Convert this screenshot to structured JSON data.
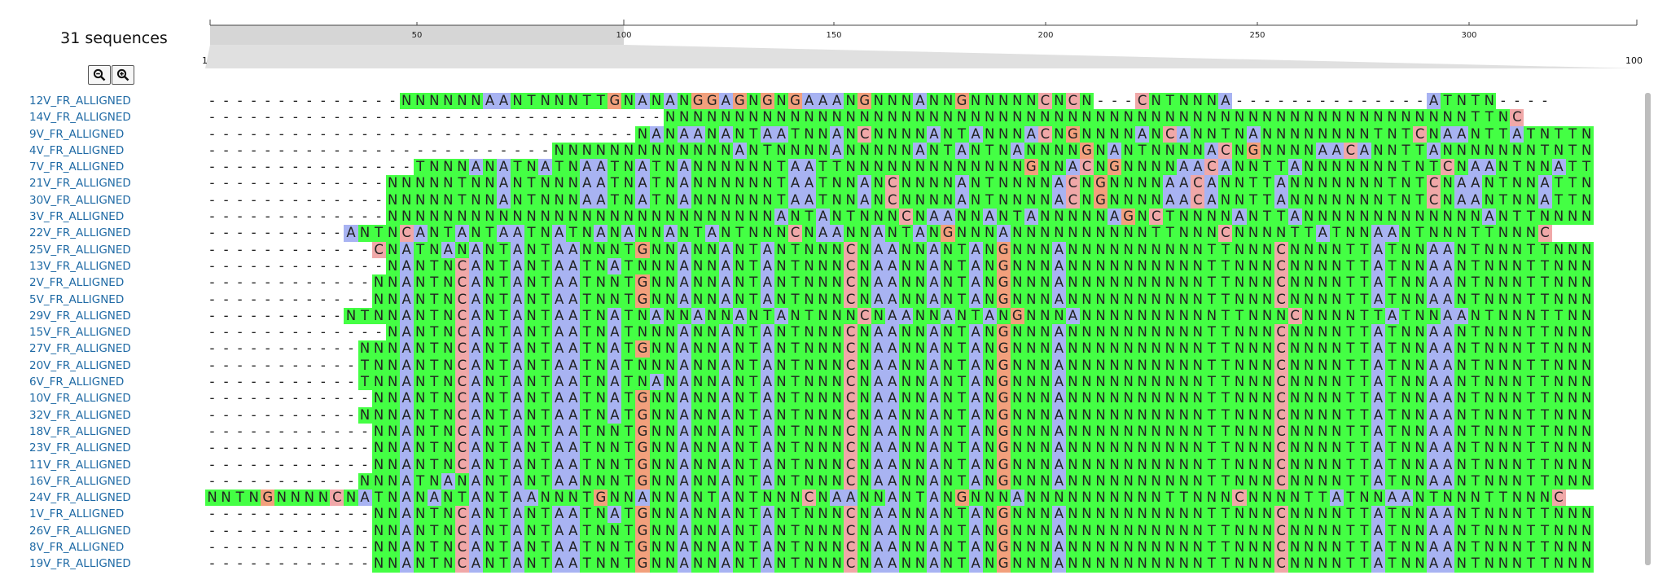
{
  "header": {
    "count_label": "31 sequences"
  },
  "toolbar": {
    "zoom_out_icon": "zoom-out-icon",
    "zoom_in_icon": "zoom-in-icon"
  },
  "ruler": {
    "ticks": [
      "50",
      "100",
      "150",
      "200",
      "250",
      "300"
    ],
    "overview_start": "1",
    "overview_end": "100"
  },
  "colors": {
    "A": "#a8b3f2",
    "C": "#f0a8a8",
    "G": "#f2a07c",
    "T": "#44ff44",
    "N": "#44ff44",
    "gap": "#ffffff"
  },
  "sequences": [
    {
      "name": "12V_FR_ALLIGNED",
      "seq": "--------------NNNNNNAANTNNNTTGNANANGGAGNGNGAAANGNNNANNGNNNNNCNCN---CNTNNNA--------------ATNTN----"
    },
    {
      "name": "14V_FR_ALLIGNED",
      "seq": "---------------------------------NNNNNNNNNNNNNNNNNNNNNNNNNNNNNNNNNNNNNNNNNNNNNNNNNNNNNNNNNNTTNC"
    },
    {
      "name": "9V_FR_ALLIGNED",
      "seq": "-------------------------------NANAANANTAATNNANCNNNNANTANNNACNGNNNNANCANNTNANNNNNNNNTNTCNAANTTATNTTNCN"
    },
    {
      "name": "4V_FR_ALLIGNED",
      "seq": "-------------------------NNNNNNNNNNNNNANTNNNNANNNNNANTANTNANNNNGNANTNNNNACNGNNNNAACANNTTANNNNNNNTNTNCNANNNTATNTNNC"
    },
    {
      "name": "7V_FR_ALLIGNED",
      "seq": "---------------TNNNANATNATNAATNATNANNNNNNTAATTNNNNNNNNNNNNNGNNACNGNNNNAACANNTTANNNNNNNTNTCNAANTNNATTNNC"
    },
    {
      "name": "21V_FR_ALLIGNED",
      "seq": "-------------NNNNNTNNANTNNNAATNATNANNNNNNTAATNNANCNNNNANTNNNNACNGNNNNAACANNTTANNNNNNNTNTCNAANTNNATTNNNC"
    },
    {
      "name": "30V_FR_ALLIGNED",
      "seq": "-------------NNNNNTNNANTNNNAATNATNANNNNNNTAATNNANCNNNNANTNNNNACNGNNNNAACANNTTANNNNNNNTNTCNAANTNNATTNNNC"
    },
    {
      "name": "3V_FR_ALLIGNED",
      "seq": "-------------NNNNNNNNNNNNNNNNNNNNNNNNNNNNANTANTNNNCNAANNANTANNNNNAGNCTNNNNANTTANNNNNNNNNNNNNANTTNNNNNNC"
    },
    {
      "name": "22V_FR_ALLIGNED",
      "seq": "----------ANTNCANTANTAATNATNANANNANTANTNNNCNAANNANTANGNNNANNNNNNNNNNTTNNNCNNNNTTATNNAANTNNNTTNNNC"
    },
    {
      "name": "25V_FR_ALLIGNED",
      "seq": "------------CNATNANANTANTAANNNTGNNANNANTANTNNNCNAANNANTANGNNNANNNNNNNNNNTTNNNCNNNNTTATNNAANTNNNTTNNNC"
    },
    {
      "name": "13V_FR_ALLIGNED",
      "seq": "-------------NANTNCANTANTAATNATNNNANNANTANTNNNCNAANNANTANGNNNANNNNNNNNNNTTNNNCNNNNTTATNNAANTNNNTTNNNC"
    },
    {
      "name": "2V_FR_ALLIGNED",
      "seq": "------------NNANTNCANTANTAATNNTGNNANNANTANTNNNCNAANNANTANGNNNANNNNNNNNNNTTNNNCNNNNTTATNNAANTNNNTTNNNC"
    },
    {
      "name": "5V_FR_ALLIGNED",
      "seq": "------------NNANTNCANTANTAATNNTGNNANNANTANTNNNCNAANNANTANGNNNANNNNNNNNNNTTNNNCNNNNTTATNNAANTNNNTTNNNC"
    },
    {
      "name": "29V_FR_ALLIGNED",
      "seq": "----------NTNNANTNCANTANTAATNATNANNANNANTANTNNNCNAANNANTANGNNNANNNNNNNNNNTTNNNCNNNNTTATNNAANTNNNTTNNNC"
    },
    {
      "name": "15V_FR_ALLIGNED",
      "seq": "-------------NANTNCANTANTAATNATNNNANNANTANTNNNCNAANNANTANGNNNANNNNNNNNNNTTNNNCNNNNTTATNNAANTNNNTTNNNC"
    },
    {
      "name": "27V_FR_ALLIGNED",
      "seq": "-----------NNNANTNCANTANTAATNATGNNANNANTANTNNNCNAANNANTANGNNNANNNNNNNNNNTTNNNCNNNNTTATNNAANTNNNTTNNNC"
    },
    {
      "name": "20V_FR_ALLIGNED",
      "seq": "-----------TNNANTNCANTANTAATNATNNNANNANTANTNNNCNAANNANTANGNNNANNNNNNNNNNTTNNNCNNNNTTATNNAANTNNNTTNNNC"
    },
    {
      "name": "6V_FR_ALLIGNED",
      "seq": "-----------TNNANTNCANTANTAATNATNANANNANTANTNNNCNAANNANTANGNNNANNNNNNNNNNTTNNNCNNNNTTATNNAANTNNNTTNNNC"
    },
    {
      "name": "10V_FR_ALLIGNED",
      "seq": "------------NNANTNCANTANTAATNATGNNANNANTANTNNNCNAANNANTANGNNNANNNNNNNNNNTTNNNCNNNNTTATNNAANTNNNTTNNNC"
    },
    {
      "name": "32V_FR_ALLIGNED",
      "seq": "-----------NNNANTNCANTANTAATNATGNNANNANTANTNNNCNAANNANTANGNNNANNNNNNNNNNTTNNNCNNNNTTATNNAANTNNNTTNNNC"
    },
    {
      "name": "18V_FR_ALLIGNED",
      "seq": "------------NNANTNCANTANTAATNNTGNNANNANTANTNNNCNAANNANTANGNNNANNNNNNNNNNTTNNNCNNNNTTATNNAANTNNNTTNNNC"
    },
    {
      "name": "23V_FR_ALLIGNED",
      "seq": "------------NNANTNCANTANTAATNNTGNNANNANTANTNNNCNAANNANTANGNNNANNNNNNNNNNTTNNNCNNNNTTATNNAANTNNNTTNNNC"
    },
    {
      "name": "11V_FR_ALLIGNED",
      "seq": "------------NNANTNCANTANTAATNNTGNNANNANTANTNNNCNAANNANTANGNNNANNNNNNNNNNTTNNNCNNNNTTATNNAANTNNNTTNNNC"
    },
    {
      "name": "16V_FR_ALLIGNED",
      "seq": "-----------NNNATNANANTANTAANNNTGNNANNANTANTNNNCNAANNANTANGNNNANNNNNNNNNNTTNNNCNNNNTTATNNAANTNNNTTNNNC"
    },
    {
      "name": "24V_FR_ALLIGNED",
      "seq": "NNTNGNNNNCNATNANANTANTAANNNTGNNANNANTANTNNNCNAANNANTANGNNNANNNNNNNNNNTTNNNCNNNNTTATNNAANTNNNTTNNNC"
    },
    {
      "name": "1V_FR_ALLIGNED",
      "seq": "------------NNANTNCANTANTAATNATGNNANNANTANTNNNCNAANNANTANGNNNANNNNNNNNNNTTNNNCNNNNTTATNNAANTNNNTTNNNC"
    },
    {
      "name": "26V_FR_ALLIGNED",
      "seq": "------------NNANTNCANTANTAATNNTGNNANNANTANTNNNCNAANNANTANGNNNANNNNNNNNNNTTNNNCNNNNTTATNNAANTNNNTTNNNC"
    },
    {
      "name": "8V_FR_ALLIGNED",
      "seq": "------------NNANTNCANTANTAATNNTGNNANNANTANTNNNCNAANNANTANGNNNANNNNNNNNNNTTNNNCNNNNTTATNNAANTNNNTTNNNC"
    },
    {
      "name": "19V_FR_ALLIGNED",
      "seq": "------------NNANTNCANTANTAATNNTGNNANNANTANTNNNCNAANNANTANGNNNANNNNNNNNNNTTNNNCNNNNTTATNNAANTNNNTTNNNC"
    }
  ]
}
